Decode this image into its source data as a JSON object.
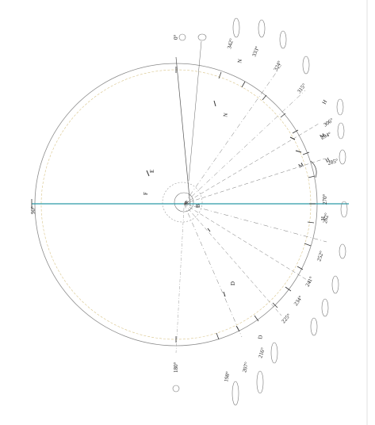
{
  "drawing": {
    "outer_circle_color": "#8a8a8a",
    "inner_circle_color": "#d9c58a",
    "axis_color": "#2a9aa8",
    "line_color": "#555555"
  },
  "angle_labels": [
    {
      "text": "0°",
      "circle": "c1"
    },
    {
      "text": "342°",
      "circle": "c2"
    },
    {
      "text": "333°",
      "circle": "c3"
    },
    {
      "text": "324°",
      "circle": "c4"
    },
    {
      "text": "315°",
      "circle": "c5"
    },
    {
      "text": "306°",
      "circle": "c6"
    },
    {
      "text": "294°",
      "circle": "c7"
    },
    {
      "text": "285°",
      "circle": "c8"
    },
    {
      "text": "270°",
      "circle": "c9"
    },
    {
      "text": "262°",
      "circle": ""
    },
    {
      "text": "252°",
      "circle": "c10"
    },
    {
      "text": "241°",
      "circle": "c11"
    },
    {
      "text": "234°",
      "circle": "c12"
    },
    {
      "text": "225°",
      "circle": "c13"
    },
    {
      "text": "216°",
      "circle": "c14"
    },
    {
      "text": "207°",
      "circle": "c15"
    },
    {
      "text": "198°",
      "circle": "c16"
    },
    {
      "text": "180°",
      "circle": "c17"
    },
    {
      "text": "90°",
      "circle": ""
    }
  ],
  "letters": [
    "N",
    "N",
    "H",
    "H",
    "M",
    "M",
    "H",
    "E",
    "F",
    "D",
    "D",
    "R",
    "B"
  ]
}
